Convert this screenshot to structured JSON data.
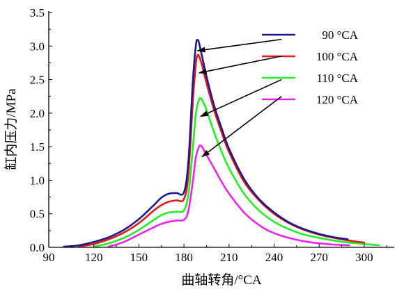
{
  "chart_data": {
    "type": "line",
    "title": "",
    "xlabel": "曲轴转角/°CA",
    "ylabel": "缸内压力/MPa",
    "xlim": [
      90,
      320
    ],
    "ylim": [
      0,
      3.5
    ],
    "xticks": [
      90,
      120,
      150,
      180,
      210,
      240,
      270,
      300
    ],
    "xtick_labels": [
      "90",
      "120",
      "150",
      "180",
      "210",
      "240",
      "270",
      "300"
    ],
    "yticks": [
      0,
      0.5,
      1.0,
      1.5,
      2.0,
      2.5,
      3.0,
      3.5
    ],
    "ytick_labels": [
      "0.0",
      "0.5",
      "1.0",
      "1.5",
      "2.0",
      "2.5",
      "3.0",
      "3.5"
    ],
    "grid": false,
    "legend_position": "top-right",
    "series": [
      {
        "name": "90 °CA",
        "color": "#1a1a8c",
        "x": [
          100,
          110,
          120,
          130,
          140,
          150,
          160,
          165,
          170,
          175,
          180,
          183,
          186,
          188,
          189,
          190,
          192,
          195,
          200,
          205,
          210,
          220,
          230,
          240,
          250,
          260,
          270,
          280,
          289
        ],
        "y": [
          0.01,
          0.03,
          0.08,
          0.15,
          0.26,
          0.42,
          0.63,
          0.74,
          0.8,
          0.81,
          0.82,
          1.3,
          2.5,
          3.02,
          3.09,
          3.05,
          2.85,
          2.55,
          2.12,
          1.78,
          1.47,
          1.02,
          0.72,
          0.52,
          0.37,
          0.27,
          0.2,
          0.15,
          0.12
        ]
      },
      {
        "name": "100 °CA",
        "color": "#e01818",
        "x": [
          110,
          120,
          130,
          140,
          150,
          160,
          165,
          170,
          175,
          180,
          183,
          186,
          188,
          189,
          190,
          192,
          195,
          200,
          205,
          210,
          220,
          230,
          240,
          250,
          260,
          270,
          280,
          290,
          300
        ],
        "y": [
          0.01,
          0.05,
          0.12,
          0.22,
          0.36,
          0.55,
          0.63,
          0.68,
          0.7,
          0.72,
          1.1,
          2.2,
          2.75,
          2.86,
          2.85,
          2.72,
          2.45,
          2.05,
          1.72,
          1.42,
          0.98,
          0.7,
          0.5,
          0.36,
          0.26,
          0.19,
          0.14,
          0.1,
          0.07
        ]
      },
      {
        "name": "110 °CA",
        "color": "#22ee22",
        "x": [
          120,
          130,
          140,
          150,
          160,
          165,
          170,
          175,
          180,
          183,
          186,
          188,
          190,
          191,
          192,
          195,
          200,
          205,
          210,
          220,
          230,
          240,
          250,
          260,
          270,
          280,
          290,
          300,
          310
        ],
        "y": [
          0.01,
          0.06,
          0.14,
          0.26,
          0.41,
          0.48,
          0.52,
          0.53,
          0.55,
          0.8,
          1.5,
          2.0,
          2.2,
          2.22,
          2.2,
          2.05,
          1.72,
          1.43,
          1.18,
          0.8,
          0.55,
          0.38,
          0.27,
          0.19,
          0.14,
          0.1,
          0.07,
          0.05,
          0.03
        ]
      },
      {
        "name": "120 °CA",
        "color": "#ee22ee",
        "x": [
          130,
          140,
          150,
          160,
          165,
          170,
          175,
          180,
          183,
          186,
          188,
          190,
          191,
          192,
          194,
          197,
          200,
          205,
          210,
          220,
          230,
          240,
          250,
          260,
          270,
          280,
          290
        ],
        "y": [
          0.01,
          0.08,
          0.19,
          0.3,
          0.35,
          0.38,
          0.4,
          0.41,
          0.55,
          1.0,
          1.35,
          1.5,
          1.52,
          1.5,
          1.42,
          1.3,
          1.18,
          0.98,
          0.8,
          0.52,
          0.33,
          0.21,
          0.14,
          0.09,
          0.06,
          0.04,
          0.03
        ]
      }
    ],
    "annotations": [
      {
        "type": "arrow",
        "from": [
          245,
          3.1
        ],
        "to": [
          189,
          2.93
        ]
      },
      {
        "type": "arrow",
        "from": [
          245,
          2.85
        ],
        "to": [
          190,
          2.6
        ]
      },
      {
        "type": "arrow",
        "from": [
          245,
          2.5
        ],
        "to": [
          191,
          1.95
        ]
      },
      {
        "type": "arrow",
        "from": [
          245,
          2.25
        ],
        "to": [
          192,
          1.35
        ]
      }
    ]
  }
}
